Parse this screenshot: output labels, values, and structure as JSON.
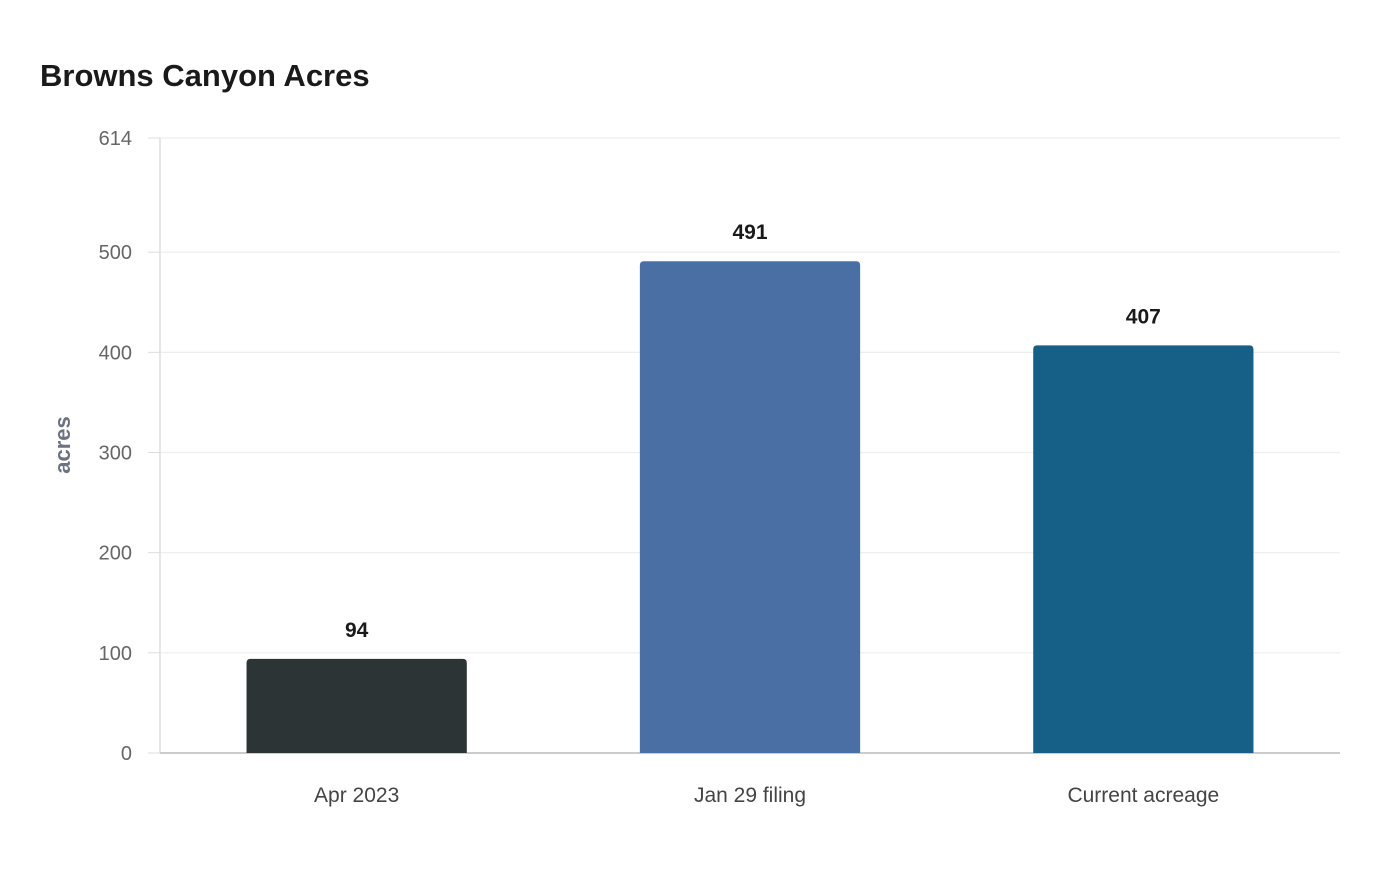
{
  "chart_data": {
    "type": "bar",
    "title": "Browns Canyon Acres",
    "xlabel": "",
    "ylabel": "acres",
    "categories": [
      "Apr 2023",
      "Jan 29 filing",
      "Current acreage"
    ],
    "values": [
      94,
      491,
      407
    ],
    "data_labels": [
      "94",
      "491",
      "407"
    ],
    "ylim": [
      0,
      614
    ],
    "yticks": [
      0,
      100,
      200,
      300,
      400,
      500,
      614
    ],
    "grid": true,
    "legend": "none",
    "colors": [
      "#2d3436",
      "#4a6fa5",
      "#166088"
    ],
    "axis_text_color": "#666666",
    "label_text_color": "#1a1a1a",
    "grid_color": "#eeeeee"
  }
}
